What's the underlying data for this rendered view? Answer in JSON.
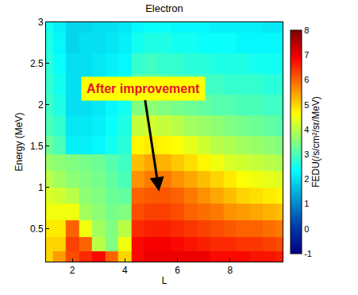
{
  "chart_data": {
    "type": "heatmap",
    "title": "Electron",
    "x_label": "L",
    "y_label": "Energy (MeV)",
    "x": [
      1,
      1.5,
      2,
      2.5,
      3,
      3.5,
      4,
      4.5,
      5,
      5.5,
      6,
      6.5,
      7,
      7.5,
      8,
      8.5,
      9,
      9.5,
      10
    ],
    "y": [
      0.15,
      0.3,
      0.5,
      0.7,
      0.9,
      1.1,
      1.3,
      1.5,
      1.75,
      2.0,
      2.25,
      2.5,
      2.75,
      3.0
    ],
    "z": [
      [
        5,
        5.5,
        6.2,
        6.5,
        6.8,
        6,
        5,
        6.8,
        7,
        7,
        7,
        7,
        7,
        6.8,
        6.8,
        6.8,
        6.7,
        6.7,
        6.6
      ],
      [
        5,
        5,
        6.3,
        6,
        4,
        3.5,
        4.5,
        6.8,
        6.9,
        6.9,
        6.8,
        6.7,
        6.6,
        6.5,
        6.5,
        6.4,
        6.4,
        6.3,
        6.2
      ],
      [
        4.8,
        4.8,
        6,
        4.5,
        3.8,
        3.5,
        4,
        6.5,
        6.6,
        6.6,
        6.5,
        6.4,
        6.3,
        6.2,
        6.1,
        6,
        6,
        5.9,
        5.8
      ],
      [
        4.5,
        4.5,
        4.5,
        3.8,
        3.6,
        3.4,
        3.5,
        6.2,
        6.3,
        6.3,
        6.2,
        6,
        5.9,
        5.8,
        5.6,
        5.5,
        5.4,
        5.3,
        5.2
      ],
      [
        4.3,
        4.2,
        4,
        3.6,
        3.5,
        3.3,
        3.2,
        6,
        6.1,
        6.1,
        6,
        5.8,
        5.6,
        5.4,
        5.2,
        5,
        4.9,
        4.8,
        4.7
      ],
      [
        4,
        3.8,
        3.6,
        3.5,
        3.4,
        3.2,
        3,
        5.6,
        5.8,
        5.8,
        5.6,
        5.4,
        5.2,
        5,
        4.8,
        4.6,
        4.5,
        4.4,
        4.3
      ],
      [
        3.7,
        3.6,
        3.5,
        3.4,
        3.3,
        3.1,
        2.9,
        5.2,
        5.4,
        5.3,
        5.1,
        4.9,
        4.7,
        4.5,
        4.3,
        4.2,
        4.1,
        4,
        3.9
      ],
      [
        3.3,
        3,
        2.2,
        2.2,
        2.3,
        2.5,
        2.7,
        4.7,
        4.8,
        4.7,
        4.6,
        4.4,
        4.2,
        4,
        3.9,
        3.8,
        3.7,
        3.6,
        3.5
      ],
      [
        3,
        2.8,
        2.1,
        2.1,
        2.2,
        2.4,
        2.6,
        4.1,
        4.2,
        4.1,
        4,
        3.8,
        3.7,
        3.6,
        3.5,
        3.4,
        3.3,
        3.2,
        3.1
      ],
      [
        2.9,
        2.6,
        2,
        2,
        2.1,
        2.3,
        2.5,
        3.5,
        3.6,
        3.5,
        3.4,
        3.3,
        3.2,
        3.1,
        3.1,
        3,
        3,
        2.9,
        2.9
      ],
      [
        2.8,
        2.5,
        2,
        2,
        2.1,
        2.3,
        2.4,
        3.1,
        3.2,
        3.1,
        3,
        3,
        2.9,
        2.9,
        2.8,
        2.8,
        2.8,
        2.7,
        2.7
      ],
      [
        2.7,
        2.4,
        2,
        2,
        2.1,
        2.2,
        2.3,
        2.8,
        2.9,
        2.8,
        2.8,
        2.7,
        2.7,
        2.6,
        2.6,
        2.6,
        2.5,
        2.5,
        2.5
      ],
      [
        2.6,
        2.3,
        1.9,
        2,
        2,
        2.1,
        2.2,
        2.5,
        2.6,
        2.6,
        2.5,
        2.5,
        2.4,
        2.4,
        2.4,
        2.3,
        2.3,
        2.3,
        2.3
      ],
      [
        2.5,
        2.2,
        1.9,
        1.9,
        2,
        2,
        2.1,
        2.3,
        2.4,
        2.4,
        2.3,
        2.3,
        2.3,
        2.2,
        2.2,
        2.2,
        2.2,
        2.1,
        2.1
      ]
    ],
    "color": "Jet",
    "xlim": [
      1,
      10
    ],
    "xticks": [
      2,
      4,
      6,
      8
    ],
    "ylim": [
      0.1,
      3
    ],
    "yticks": [
      0.5,
      1,
      1.5,
      2,
      2.5,
      3
    ],
    "colorbar_title": "FEDU(/s/cm²/sr/MeV)",
    "colorbar_lim": [
      -1,
      8
    ],
    "colorbar_ticks": [
      -1,
      0,
      1,
      2,
      3,
      4,
      5,
      6,
      7,
      8
    ],
    "annotations": [
      {
        "text": "After improvement",
        "x": 5.3,
        "y": 0.95
      }
    ]
  }
}
